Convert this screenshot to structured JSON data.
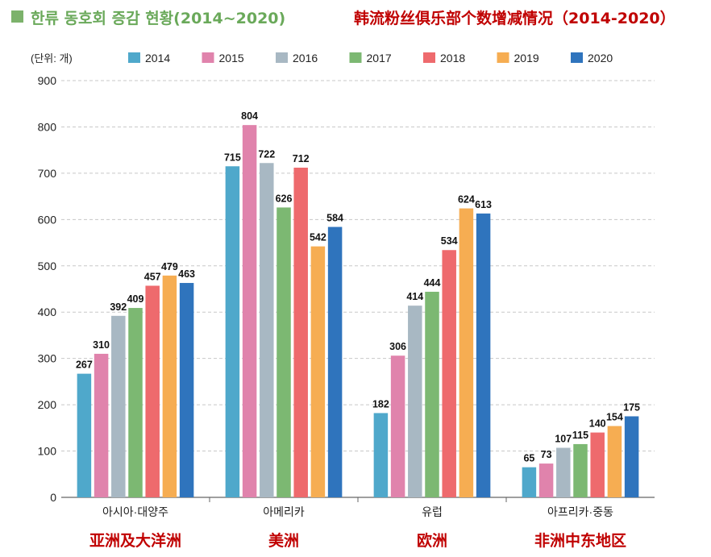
{
  "title": {
    "korean": "한류 동호회 증감 현황(2014~2020)",
    "chinese": "韩流粉丝俱乐部个数增减情况（2014-2020）",
    "square_color": "#7cb26b"
  },
  "chart_data": {
    "type": "bar",
    "unit_label": "(단위: 개)",
    "categories": [
      "아시아·대양주",
      "아메리카",
      "유럽",
      "아프리카·중동"
    ],
    "category_translations": [
      "亚洲及大洋洲",
      "美洲",
      "欧洲",
      "非洲中东地区"
    ],
    "ylim": [
      0,
      900
    ],
    "yticks": [
      0,
      100,
      200,
      300,
      400,
      500,
      600,
      700,
      800,
      900
    ],
    "grid": true,
    "legend_position": "top",
    "series": [
      {
        "name": "2014",
        "color": "#4fa8cb",
        "values": [
          267,
          715,
          182,
          65
        ]
      },
      {
        "name": "2015",
        "color": "#e083ac",
        "values": [
          310,
          804,
          306,
          73
        ]
      },
      {
        "name": "2016",
        "color": "#a8b8c3",
        "values": [
          392,
          722,
          414,
          107
        ]
      },
      {
        "name": "2017",
        "color": "#7cb872",
        "values": [
          409,
          626,
          444,
          115
        ]
      },
      {
        "name": "2018",
        "color": "#ee6a6d",
        "values": [
          457,
          712,
          534,
          140
        ]
      },
      {
        "name": "2019",
        "color": "#f6ad52",
        "values": [
          479,
          542,
          624,
          154
        ]
      },
      {
        "name": "2020",
        "color": "#2f74bd",
        "values": [
          463,
          584,
          613,
          175
        ]
      }
    ]
  }
}
